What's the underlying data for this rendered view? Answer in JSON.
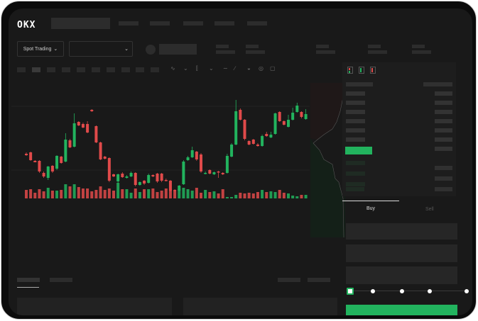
{
  "header": {
    "logo": "OKX"
  },
  "toolbar": {
    "spot_trading_label": "Spot Trading",
    "chevron": "chevron-down-icon"
  },
  "chart_icons": [
    "indicator-icon",
    "chevron-down-icon",
    "candle-type-icon",
    "chevron-down-icon",
    "line-icon",
    "ruler-icon",
    "camera-icon",
    "settings-icon",
    "fullscreen-icon"
  ],
  "orderbook": {
    "view_icons": [
      "orderbook-both-icon",
      "orderbook-bids-icon",
      "orderbook-asks-icon"
    ]
  },
  "order_form": {
    "tabs": [
      {
        "label": "Buy",
        "active": true
      },
      {
        "label": "Sell",
        "active": false
      }
    ],
    "slider_percent": 0,
    "slider_stops": [
      0,
      25,
      50,
      75,
      100
    ]
  },
  "colors": {
    "up": "#22b35e",
    "down": "#e04a4a",
    "background": "#191919",
    "accent": "#22b35e"
  },
  "candles": [
    [
      95,
      93,
      97,
      92
    ],
    [
      97,
      86,
      98,
      85
    ],
    [
      85,
      83,
      86,
      83
    ],
    [
      85,
      70,
      86,
      68
    ],
    [
      68,
      63,
      70,
      61
    ],
    [
      61,
      77,
      78,
      58
    ],
    [
      78,
      70,
      79,
      68
    ],
    [
      74,
      92,
      93,
      72
    ],
    [
      91,
      82,
      92,
      81
    ],
    [
      84,
      115,
      124,
      83
    ],
    [
      114,
      104,
      116,
      103
    ],
    [
      105,
      138,
      152,
      104
    ],
    [
      140,
      135,
      141,
      134
    ],
    [
      137,
      132,
      139,
      131
    ],
    [
      137,
      125,
      141,
      124
    ],
    [
      157,
      155,
      158,
      154
    ],
    [
      134,
      111,
      135,
      110
    ],
    [
      111,
      87,
      112,
      86
    ],
    [
      91,
      88,
      92,
      87
    ],
    [
      89,
      57,
      90,
      55
    ],
    [
      66,
      63,
      67,
      62
    ],
    [
      56,
      66,
      67,
      54
    ],
    [
      67,
      62,
      69,
      61
    ],
    [
      61,
      63,
      65,
      60
    ],
    [
      63,
      68,
      70,
      62
    ],
    [
      68,
      51,
      69,
      49
    ],
    [
      51,
      55,
      56,
      50
    ],
    [
      57,
      53,
      58,
      51
    ],
    [
      54,
      65,
      67,
      53
    ],
    [
      65,
      63,
      66,
      62
    ],
    [
      67,
      56,
      68,
      54
    ],
    [
      67,
      57,
      68,
      55
    ],
    [
      58,
      57,
      60,
      56
    ],
    [
      57,
      43,
      58,
      42
    ],
    [
      44,
      43,
      45,
      42
    ],
    [
      43,
      50,
      51,
      42
    ],
    [
      52,
      84,
      86,
      51
    ],
    [
      86,
      90,
      92,
      85
    ],
    [
      90,
      100,
      105,
      89
    ],
    [
      98,
      87,
      99,
      85
    ],
    [
      94,
      70,
      96,
      68
    ],
    [
      67,
      68,
      70,
      66
    ],
    [
      72,
      67,
      73,
      66
    ],
    [
      66,
      69,
      70,
      65
    ],
    [
      70,
      69,
      71,
      61
    ],
    [
      68,
      66,
      69,
      65
    ],
    [
      68,
      92,
      95,
      67
    ],
    [
      91,
      108,
      110,
      90
    ],
    [
      108,
      155,
      171,
      107
    ],
    [
      157,
      143,
      159,
      142
    ],
    [
      143,
      116,
      144,
      114
    ],
    [
      113,
      108,
      114,
      107
    ],
    [
      115,
      109,
      116,
      108
    ],
    [
      108,
      106,
      110,
      105
    ],
    [
      106,
      120,
      122,
      105
    ],
    [
      123,
      120,
      126,
      119
    ],
    [
      118,
      122,
      126,
      117
    ],
    [
      123,
      152,
      153,
      122
    ],
    [
      154,
      141,
      155,
      140
    ],
    [
      141,
      136,
      142,
      135
    ],
    [
      133,
      143,
      150,
      132
    ],
    [
      143,
      153,
      160,
      142
    ],
    [
      154,
      163,
      167,
      153
    ],
    [
      154,
      147,
      155,
      145
    ],
    [
      144,
      151,
      158,
      143
    ]
  ],
  "volumes": [
    12,
    13,
    8,
    13,
    10,
    15,
    11,
    11,
    12,
    20,
    17,
    20,
    16,
    14,
    14,
    10,
    12,
    17,
    12,
    14,
    11,
    22,
    13,
    13,
    8,
    14,
    9,
    13,
    13,
    14,
    9,
    11,
    14,
    13,
    11,
    13,
    15,
    13,
    11,
    15,
    8,
    12,
    9,
    10,
    7,
    13,
    2,
    2,
    5,
    8,
    7,
    8,
    7,
    9,
    12,
    9,
    10,
    9,
    12,
    8,
    7,
    4,
    3,
    5,
    5
  ]
}
